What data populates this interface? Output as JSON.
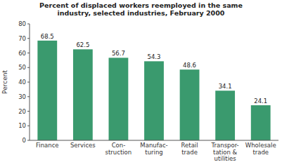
{
  "chart_data": {
    "type": "bar",
    "title": "Percent of displaced workers reemployed in the same\nindustry, selected industries, February 2000",
    "categories": [
      "Finance",
      "Services",
      "Con-\nstruction",
      "Manufac-\nturing",
      "Retail\ntrade",
      "Transpor-\ntation &\nutilities",
      "Wholesale\ntrade"
    ],
    "values": [
      68.5,
      62.5,
      56.7,
      54.3,
      48.6,
      34.1,
      24.1
    ],
    "color": "#3a9a6e",
    "ylabel": "Percent",
    "ylim": [
      0,
      80
    ],
    "yticks": [
      0,
      10,
      20,
      30,
      40,
      50,
      60,
      70,
      80
    ],
    "grid": false,
    "data_labels": true
  }
}
